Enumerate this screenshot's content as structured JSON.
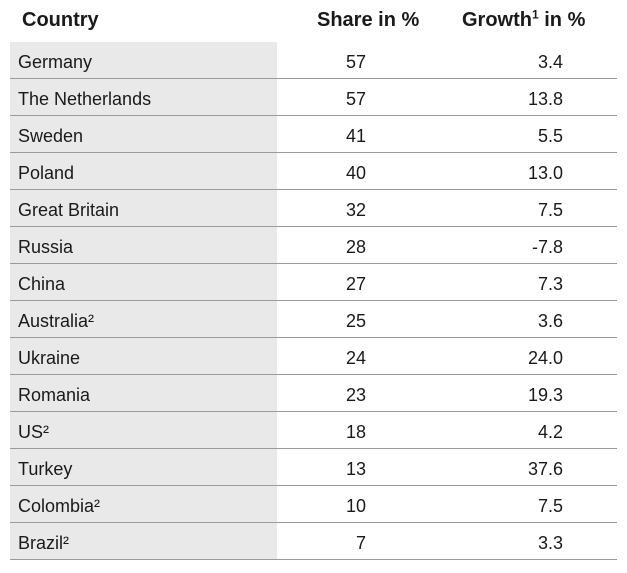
{
  "chart_data": {
    "type": "table",
    "columns": [
      "Country",
      "Share in %",
      "Growth¹ in %"
    ],
    "rows": [
      {
        "country": "Germany",
        "share": "57",
        "growth": "3.4"
      },
      {
        "country": "The Netherlands",
        "share": "57",
        "growth": "13.8"
      },
      {
        "country": "Sweden",
        "share": "41",
        "growth": "5.5"
      },
      {
        "country": "Poland",
        "share": "40",
        "growth": "13.0"
      },
      {
        "country": "Great Britain",
        "share": "32",
        "growth": "7.5"
      },
      {
        "country": "Russia",
        "share": "28",
        "growth": "-7.8"
      },
      {
        "country": "China",
        "share": "27",
        "growth": "7.3"
      },
      {
        "country": "Australia²",
        "share": "25",
        "growth": "3.6"
      },
      {
        "country": "Ukraine",
        "share": "24",
        "growth": "24.0"
      },
      {
        "country": "Romania",
        "share": "23",
        "growth": "19.3"
      },
      {
        "country": "US²",
        "share": "18",
        "growth": "4.2"
      },
      {
        "country": "Turkey",
        "share": "13",
        "growth": "37.6"
      },
      {
        "country": "Colombia²",
        "share": "10",
        "growth": "7.5"
      },
      {
        "country": "Brazil²",
        "share": "7",
        "growth": "3.3"
      }
    ]
  },
  "header": {
    "country": "Country",
    "share": "Share in %",
    "growth_main": "Growth",
    "growth_sup": "1",
    "growth_suffix": " in %"
  },
  "colors": {
    "first_column_shade": "#e9e9e9",
    "row_divider": "#9a9a9a"
  }
}
